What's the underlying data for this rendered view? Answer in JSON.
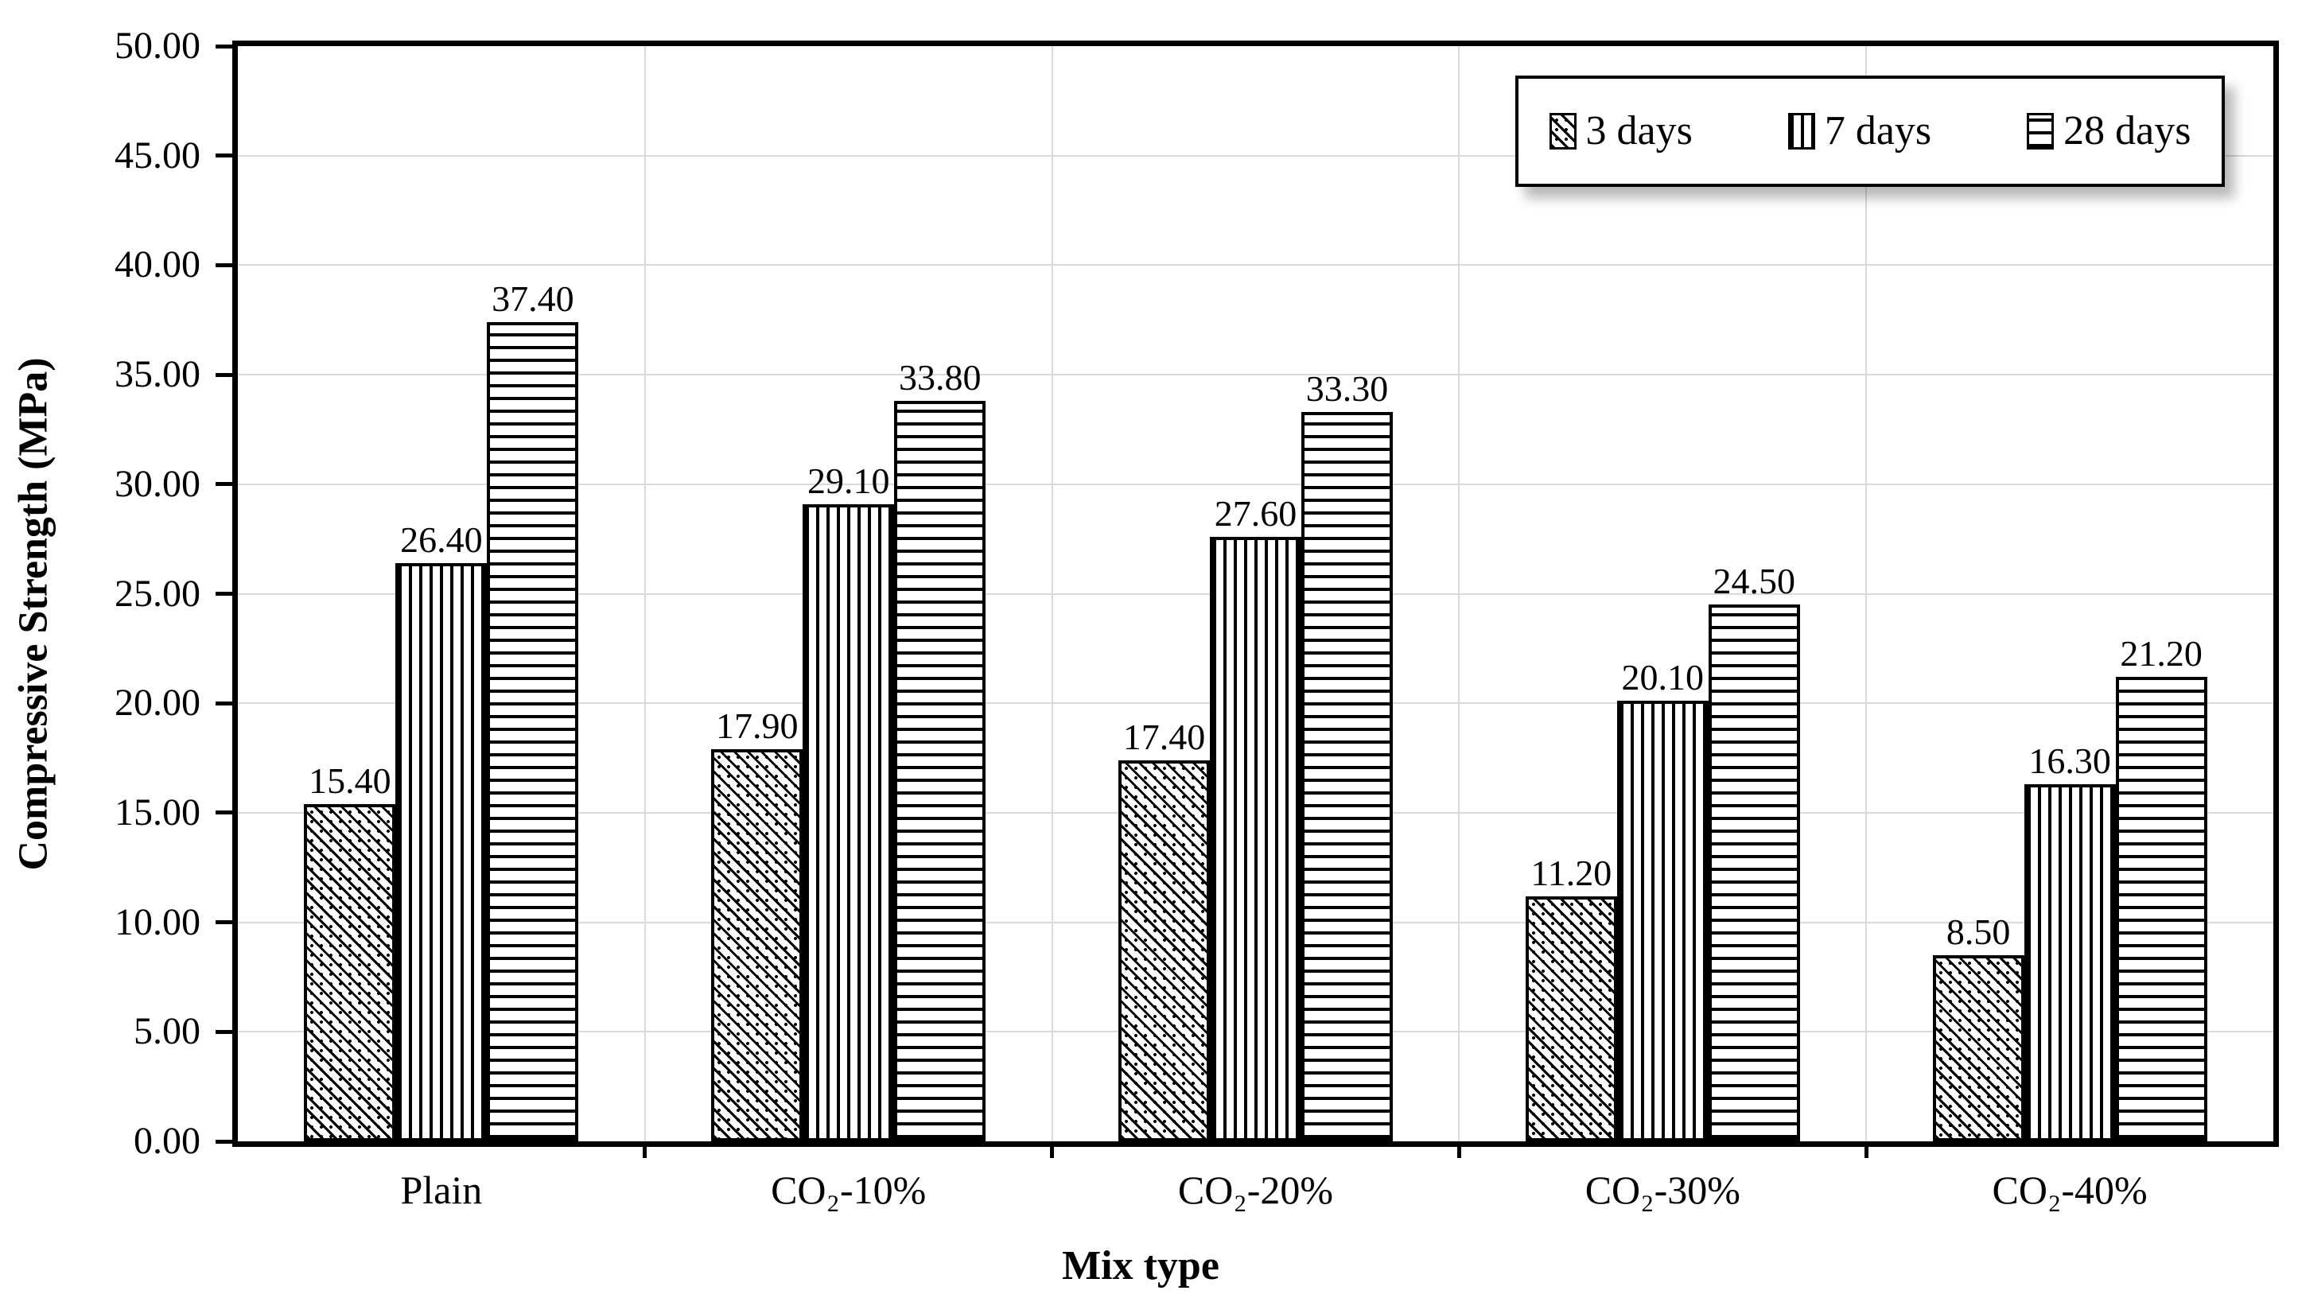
{
  "chart_data": {
    "type": "bar",
    "title": "",
    "xlabel": "Mix type",
    "ylabel": "Compressive Strength (MPa)",
    "categories": [
      "Plain",
      "CO₂-10%",
      "CO₂-20%",
      "CO₂-30%",
      "CO₂-40%"
    ],
    "series": [
      {
        "name": "3 days",
        "pattern": "diagonal-dotted-hatch",
        "values": [
          15.4,
          17.9,
          17.4,
          11.2,
          8.5
        ]
      },
      {
        "name": "7 days",
        "pattern": "vertical-lines",
        "values": [
          26.4,
          29.1,
          27.6,
          20.1,
          16.3
        ]
      },
      {
        "name": "28 days",
        "pattern": "horizontal-lines",
        "values": [
          37.4,
          33.8,
          33.3,
          24.5,
          21.2
        ]
      }
    ],
    "value_label_decimals": 2,
    "ylim": [
      0,
      50
    ],
    "ytick_step": 5,
    "ytick_labels": [
      "0.00",
      "5.00",
      "10.00",
      "15.00",
      "20.00",
      "25.00",
      "30.00",
      "35.00",
      "40.00",
      "45.00",
      "50.00"
    ],
    "grid": true,
    "vertical_gridlines_at_category_boundaries": true,
    "legend_position": "top-right",
    "colors": {
      "background": "#ffffff",
      "bar_fill": "#ffffff",
      "bar_border": "#000000",
      "gridline": "#d9d9d9",
      "axis": "#000000",
      "text": "#000000"
    }
  }
}
